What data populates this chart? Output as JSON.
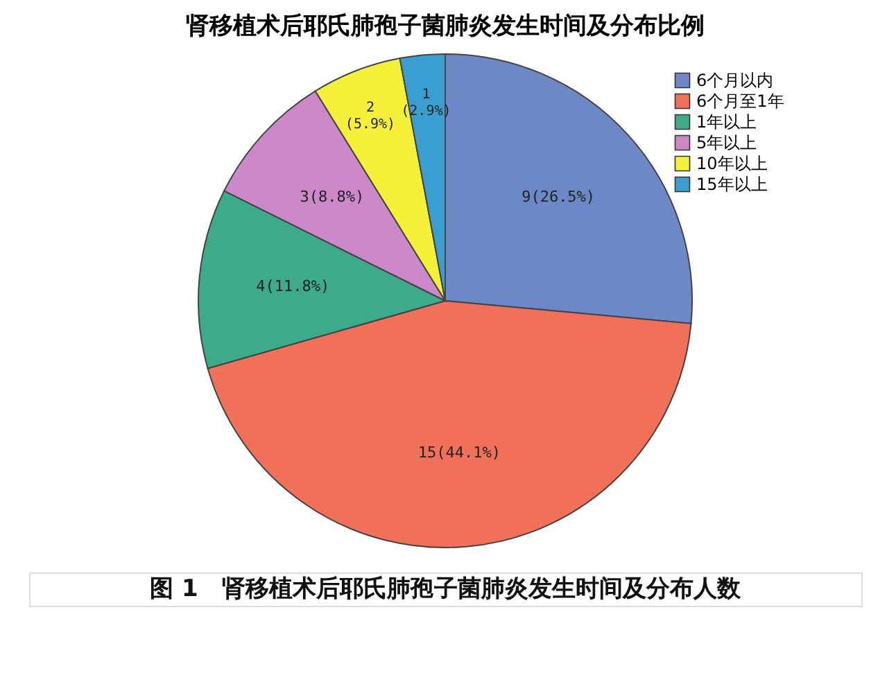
{
  "chart_data": {
    "type": "pie",
    "title": "肾移植术后耶氏肺孢子菌肺炎发生时间及分布比例",
    "categories": [
      "6个月以内",
      "6个月至1年",
      "1年以上",
      "5年以上",
      "10年以上",
      "15年以上"
    ],
    "values": [
      9,
      15,
      4,
      3,
      2,
      1
    ],
    "colors": [
      "#6d88c6",
      "#f0705a",
      "#3daa8a",
      "#cc88c8",
      "#f5f03a",
      "#3a9fd0"
    ],
    "value_labels": [
      "9(26.5%)",
      "15(44.1%)",
      "4(11.8%)",
      "3(8.8%)",
      "2(5.9%)",
      "1(2.9%)"
    ],
    "legend": "top right",
    "annotations": [
      "图 1　肾移植术后耶氏肺孢子菌肺炎发生时间及分布人数"
    ]
  }
}
